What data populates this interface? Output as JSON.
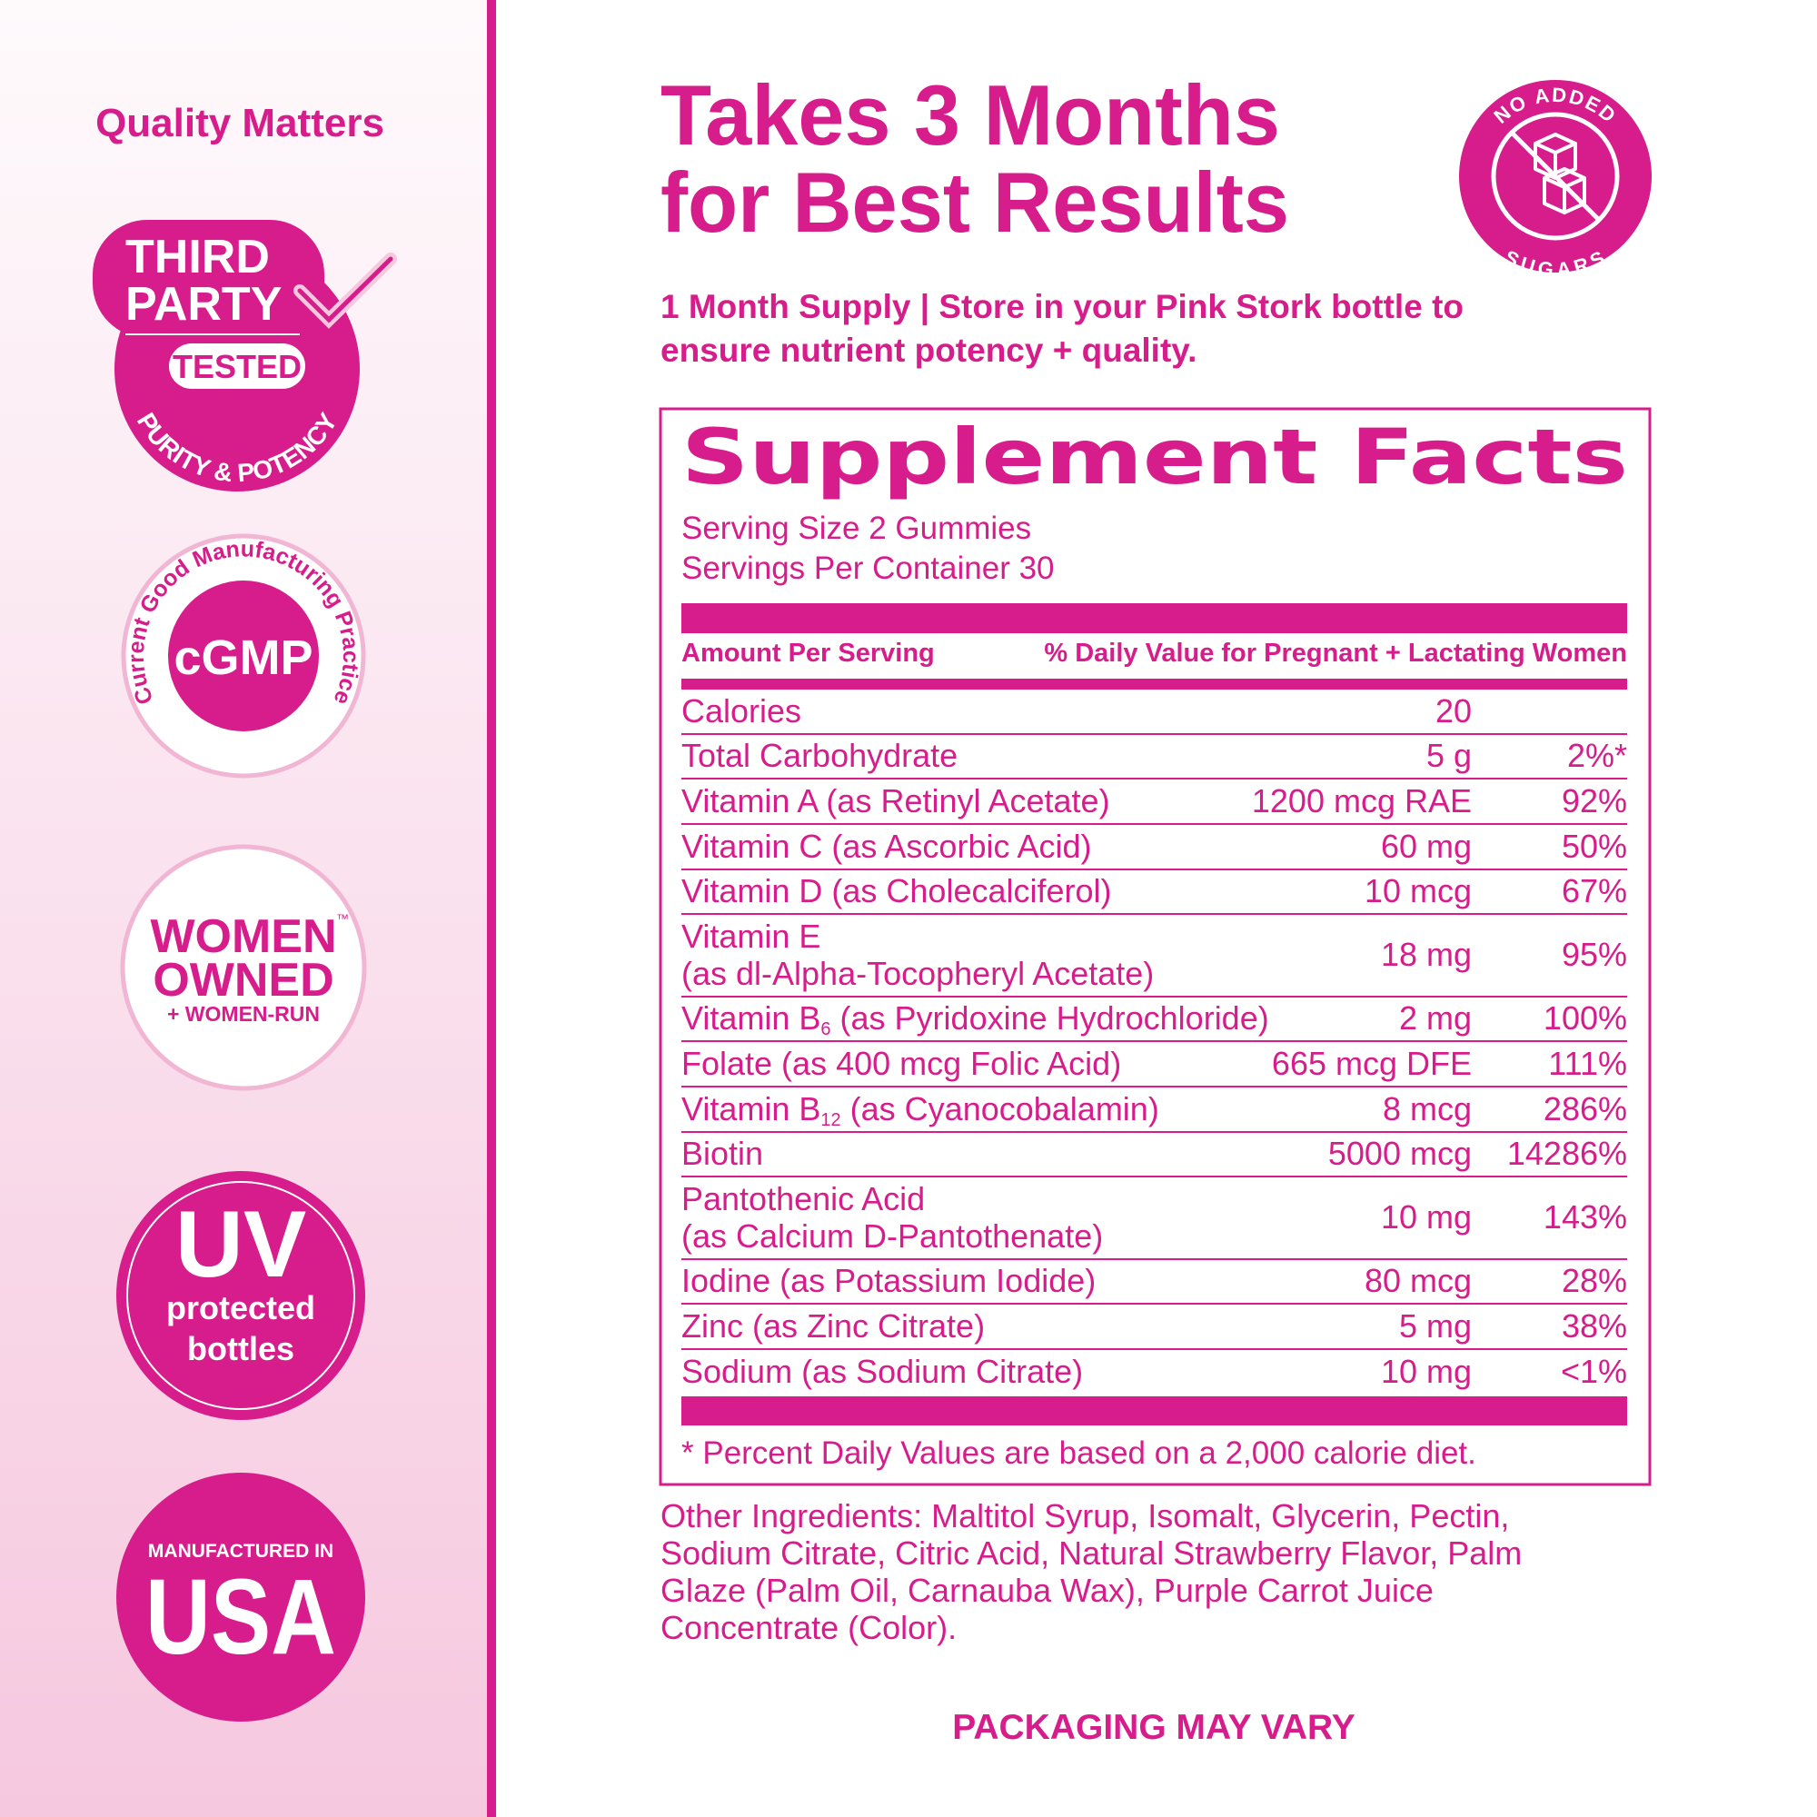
{
  "sidebar": {
    "title": "Quality Matters",
    "badges": {
      "third_party": {
        "lines": [
          "THIRD",
          "PARTY"
        ],
        "tested": "TESTED",
        "arc": "PURITY & POTENCY"
      },
      "cgmp": {
        "label": "cGMP",
        "arc": "Current Good Manufacturing Practice"
      },
      "women": {
        "lines": [
          "WOMEN",
          "OWNED"
        ],
        "tm": "™",
        "sub": "+ WOMEN-RUN"
      },
      "uv": {
        "label": "UV",
        "lines": [
          "protected",
          "bottles"
        ]
      },
      "usa": {
        "top": "MANUFACTURED IN",
        "label": "USA"
      }
    }
  },
  "header": {
    "title_lines": [
      "Takes 3 Months",
      "for Best Results"
    ],
    "badge": {
      "top": "NO ADDED",
      "bottom": "SUGARS"
    },
    "subtitle_lines": [
      "1 Month Supply | Store in your Pink Stork bottle to",
      "ensure nutrient potency + quality."
    ]
  },
  "facts": {
    "title": "Supplement Facts",
    "serving_size": "Serving Size 2 Gummies",
    "servings_per_container": "Servings Per Container 30",
    "col_amount": "Amount Per Serving",
    "col_dv": "% Daily Value for Pregnant + Lactating Women",
    "rows": [
      {
        "name": [
          "Calories"
        ],
        "amount": "20"
      },
      {
        "name": [
          "Total Carbohydrate"
        ],
        "amount": "5 g",
        "dv": "2%*"
      },
      {
        "name": [
          "Vitamin A (as Retinyl Acetate)"
        ],
        "amount": "1200 mcg RAE",
        "dv": "92%"
      },
      {
        "name": [
          "Vitamin C (as Ascorbic Acid)"
        ],
        "amount": "60 mg",
        "dv": "50%"
      },
      {
        "name": [
          "Vitamin D (as Cholecalciferol)"
        ],
        "amount": "10 mcg",
        "dv": "67%"
      },
      {
        "name": [
          "Vitamin E",
          "(as dl-Alpha-Tocopheryl Acetate)"
        ],
        "amount": "18 mg",
        "dv": "95%"
      },
      {
        "name": [
          "Vitamin B"
        ],
        "subscript": "6",
        "name_after": " (as Pyridoxine Hydrochloride)",
        "amount": "2 mg",
        "dv": "100%"
      },
      {
        "name": [
          "Folate (as 400 mcg Folic Acid)"
        ],
        "amount": "665 mcg DFE",
        "dv": "111%"
      },
      {
        "name": [
          "Vitamin B"
        ],
        "subscript": "12",
        "name_after": " (as Cyanocobalamin)",
        "amount": "8 mcg",
        "dv": "286%"
      },
      {
        "name": [
          "Biotin"
        ],
        "amount": "5000 mcg",
        "dv": "14286%"
      },
      {
        "name": [
          "Pantothenic Acid",
          "(as Calcium D-Pantothenate)"
        ],
        "amount": "10 mg",
        "dv": "143%"
      },
      {
        "name": [
          "Iodine (as Potassium Iodide)"
        ],
        "amount": "80 mcg",
        "dv": "28%"
      },
      {
        "name": [
          "Zinc (as Zinc Citrate)"
        ],
        "amount": "5 mg",
        "dv": "38%"
      },
      {
        "name": [
          "Sodium (as Sodium Citrate)"
        ],
        "amount": "10 mg",
        "dv": "<1%"
      }
    ],
    "footnote": "* Percent Daily Values are based on a 2,000 calorie diet."
  },
  "other_ingredients": [
    "Other Ingredients: Maltitol Syrup, Isomalt, Glycerin, Pectin,",
    "Sodium Citrate, Citric Acid, Natural Strawberry Flavor, Palm",
    "Glaze (Palm Oil, Carnauba Wax), Purple Carrot Juice",
    "Concentrate (Color)."
  ],
  "packaging_note": "PACKAGING MAY VARY"
}
